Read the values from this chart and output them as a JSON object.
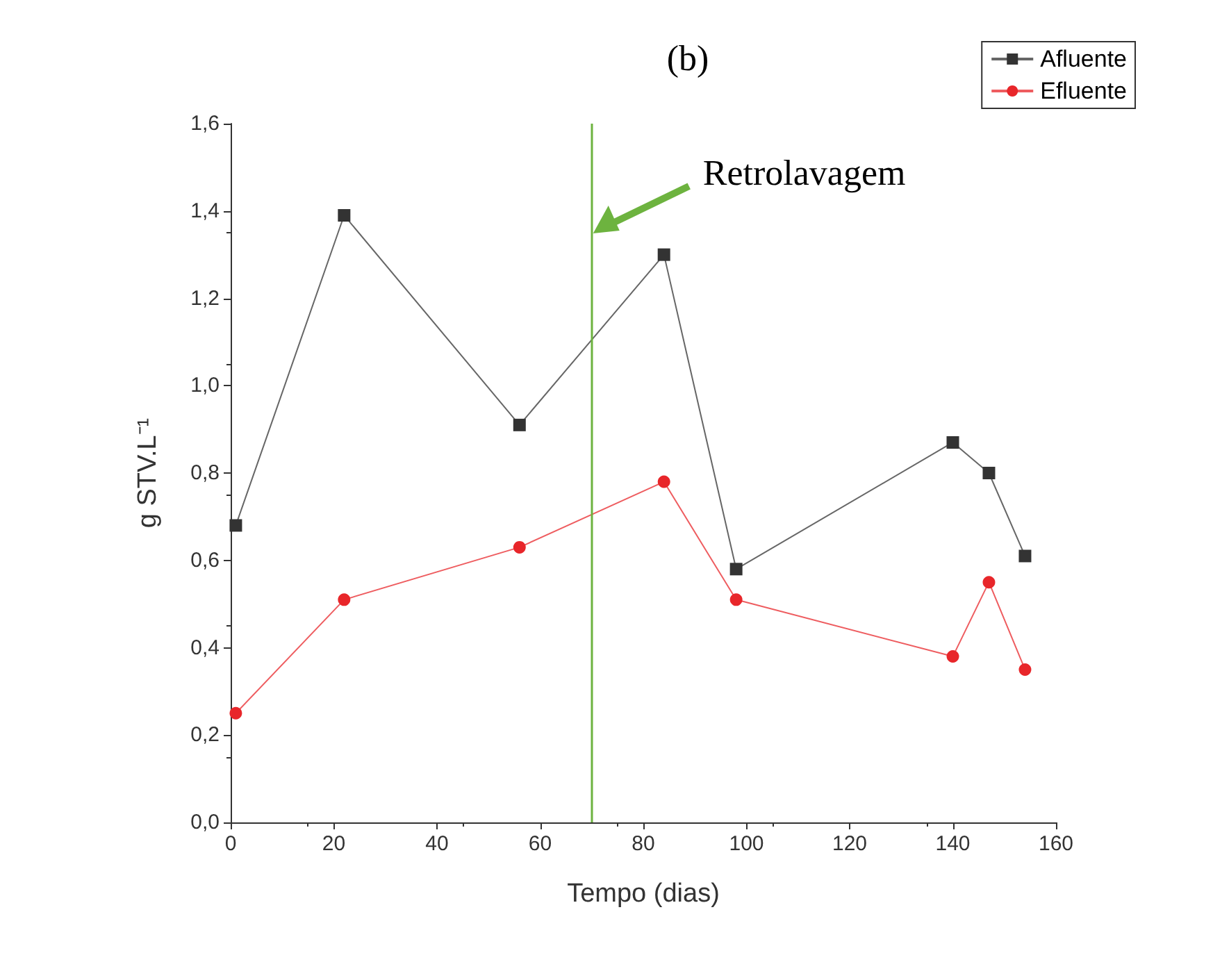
{
  "chart_data": {
    "type": "line",
    "title": "(b)",
    "xlabel": "Tempo (dias)",
    "ylabel": "g STV.L⁻¹",
    "series": [
      {
        "name": "Afluente",
        "color": "#333333",
        "marker": "square",
        "x": [
          1,
          22,
          56,
          84,
          98,
          140,
          147,
          154
        ],
        "values": [
          0.68,
          1.39,
          0.91,
          1.3,
          0.58,
          0.87,
          0.8,
          0.61
        ]
      },
      {
        "name": "Efluente",
        "color": "#e8262a",
        "marker": "circle",
        "x": [
          1,
          22,
          56,
          84,
          98,
          140,
          147,
          154
        ],
        "values": [
          0.25,
          0.51,
          0.63,
          0.78,
          0.51,
          0.38,
          0.55,
          0.35
        ]
      }
    ],
    "xlim": [
      0,
      160
    ],
    "xticks": [
      0,
      20,
      40,
      60,
      80,
      100,
      120,
      140,
      160
    ],
    "ylim": [
      0,
      1.6
    ],
    "yticks": [
      {
        "value": 0,
        "label": "0,0"
      },
      {
        "value": 0.2,
        "label": "0,2"
      },
      {
        "value": 0.4,
        "label": "0,4"
      },
      {
        "value": 0.6,
        "label": "0,6"
      },
      {
        "value": 0.8,
        "label": "0,8"
      },
      {
        "value": 1.0,
        "label": "1,0"
      },
      {
        "value": 1.2,
        "label": "1,2"
      },
      {
        "value": 1.4,
        "label": "1,4"
      },
      {
        "value": 1.6,
        "label": "1,6"
      }
    ],
    "ref_lines": [
      {
        "axis": "x",
        "value": 70,
        "label": "Retrolavagem",
        "color": "#6db33f"
      }
    ],
    "legend": "top right",
    "grid": false,
    "line_style": "solid"
  }
}
